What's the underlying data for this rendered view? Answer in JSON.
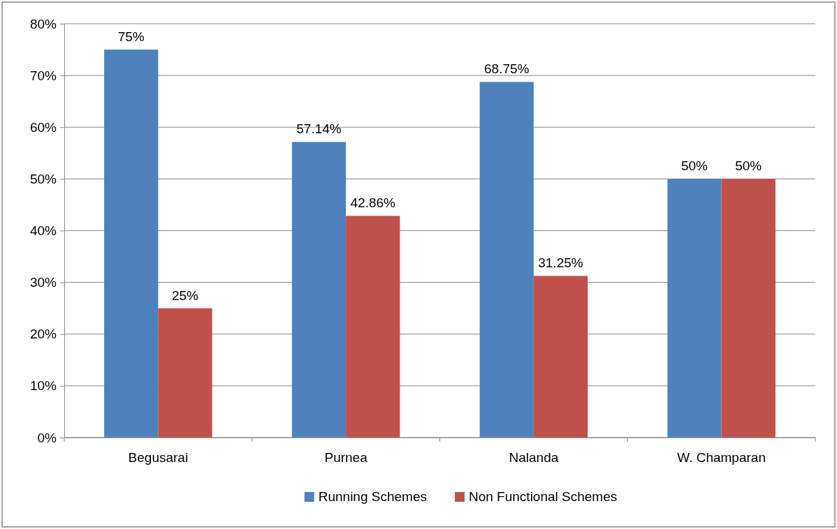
{
  "chart_data": {
    "type": "bar",
    "categories": [
      "Begusarai",
      "Purnea",
      "Nalanda",
      "W. Champaran"
    ],
    "series": [
      {
        "name": "Running Schemes",
        "color": "#4f81bd",
        "values": [
          75,
          57.14,
          68.75,
          50
        ],
        "value_labels": [
          "75%",
          "57.14%",
          "68.75%",
          "50%"
        ]
      },
      {
        "name": "Non Functional Schemes",
        "color": "#c0504d",
        "values": [
          25,
          42.86,
          31.25,
          50
        ],
        "value_labels": [
          "25%",
          "42.86%",
          "31.25%",
          "50%"
        ]
      }
    ],
    "ylim": [
      0,
      80
    ],
    "yticks": [
      {
        "value": 0,
        "label": "0%"
      },
      {
        "value": 10,
        "label": "10%"
      },
      {
        "value": 20,
        "label": "20%"
      },
      {
        "value": 30,
        "label": "30%"
      },
      {
        "value": 40,
        "label": "40%"
      },
      {
        "value": 50,
        "label": "50%"
      },
      {
        "value": 60,
        "label": "60%"
      },
      {
        "value": 70,
        "label": "70%"
      },
      {
        "value": 80,
        "label": "80%"
      }
    ],
    "grid": "y",
    "legend": "bottom"
  }
}
